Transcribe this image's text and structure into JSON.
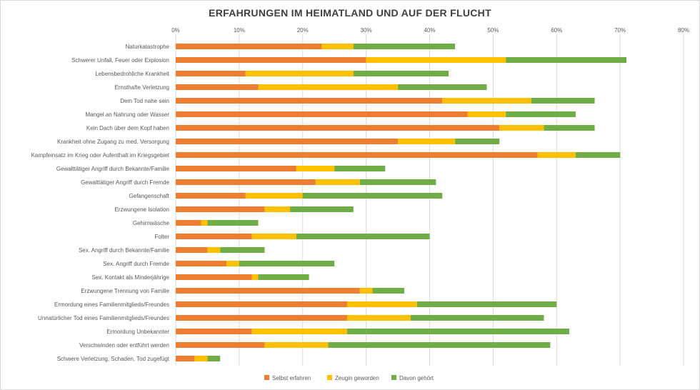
{
  "chart_data": {
    "type": "bar",
    "orientation": "horizontal",
    "stacked": true,
    "title": "ERFAHRUNGEN IM HEIMATLAND UND AUF DER FLUCHT",
    "x_ticks": [
      "0%",
      "10%",
      "20%",
      "30%",
      "40%",
      "50%",
      "60%",
      "70%",
      "80%"
    ],
    "xlim": [
      0,
      80
    ],
    "grid": true,
    "legend_position": "bottom",
    "categories": [
      "Naturkatastrophe",
      "Schwerer Unfall, Feuer oder Explosion",
      "Lebensbedrohliche Krankheit",
      "Ernsthafte Verletzung",
      "Dem Tod nahe sein",
      "Mangel an Nahrung oder Wasser",
      "Kein Dach über dem Kopf haben",
      "Krankheit ohne Zugang zu med. Versorgung",
      "Kampfeinsatz im Krieg oder Aufenthalt im Kriegsgebiet",
      "Gewalttätiger Angriff durch Bekannte/Familie",
      "Gewalttätiger Angriff durch Fremde",
      "Gefangenschaft",
      "Erzwungene Isolation",
      "Gehirnwäsche",
      "Folter",
      "Sex. Angriff durch Bekannte/Familie",
      "Sex. Angriff durch Fremde",
      "Sex. Kontakt als Minderjährige",
      "Erzwungene Trennung von Familie",
      "Ermordung eines Familienmitglieds/Freundes",
      "Unnatürlicher Tod eines Familienmitglieds/Freundes",
      "Ermordung Unbekannter",
      "Verschwinden oder entführt werden",
      "Schwere Verletzung, Schaden, Tod zugefügt"
    ],
    "series": [
      {
        "name": "Selbst erfahren",
        "color": "#ed7d31",
        "values": [
          23,
          30,
          11,
          13,
          42,
          46,
          51,
          35,
          57,
          19,
          22,
          11,
          14,
          4,
          12,
          5,
          8,
          12,
          29,
          27,
          27,
          12,
          14,
          3
        ]
      },
      {
        "name": "Zeugin geworden",
        "color": "#ffc000",
        "values": [
          5,
          22,
          17,
          22,
          14,
          6,
          7,
          9,
          6,
          6,
          7,
          9,
          4,
          1,
          7,
          2,
          2,
          1,
          2,
          11,
          10,
          15,
          10,
          2
        ]
      },
      {
        "name": "Davon gehört",
        "color": "#70ad47",
        "values": [
          16,
          19,
          15,
          14,
          10,
          11,
          8,
          7,
          7,
          8,
          12,
          22,
          10,
          8,
          21,
          7,
          15,
          8,
          5,
          22,
          21,
          35,
          35,
          2
        ]
      }
    ]
  }
}
